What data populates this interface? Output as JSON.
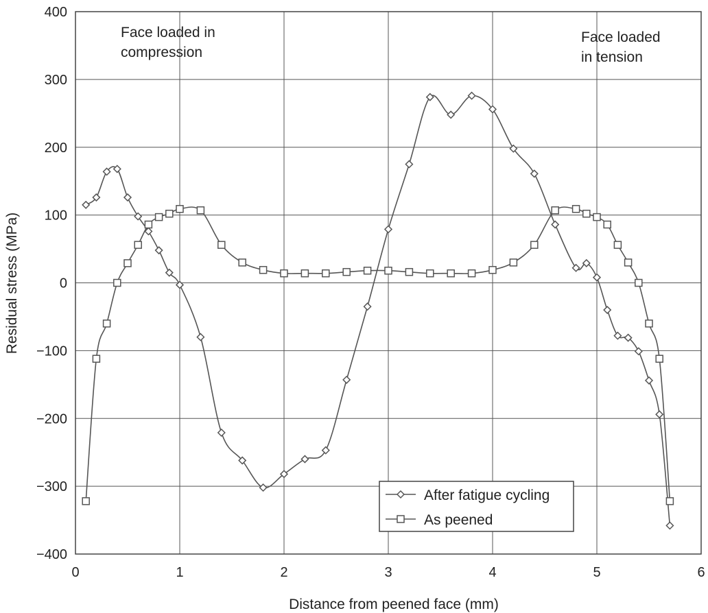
{
  "chart_data": {
    "type": "line",
    "xlabel": "Distance from peened face (mm)",
    "ylabel": "Residual stress (MPa)",
    "xlim": [
      0,
      6
    ],
    "ylim": [
      -400,
      400
    ],
    "x_ticks": [
      0,
      1,
      2,
      3,
      4,
      5,
      6
    ],
    "y_ticks": [
      -400,
      -300,
      -200,
      -100,
      0,
      100,
      200,
      300,
      400
    ],
    "x_tick_labels": [
      "0",
      "1",
      "2",
      "3",
      "4",
      "5",
      "6"
    ],
    "y_tick_labels": [
      "−400",
      "−300",
      "−200",
      "−100",
      "0",
      "100",
      "200",
      "300",
      "400"
    ],
    "grid": true,
    "legend_position": "bottom-center-right",
    "annotations": [
      {
        "lines": [
          "Face loaded in",
          "compression"
        ],
        "position": "top-left"
      },
      {
        "lines": [
          "Face loaded",
          "in tension"
        ],
        "position": "top-right"
      }
    ],
    "line_color": "#555555",
    "series": [
      {
        "name": "After fatigue cycling",
        "marker": "diamond",
        "x": [
          0.1,
          0.2,
          0.3,
          0.4,
          0.5,
          0.6,
          0.7,
          0.8,
          0.9,
          1.0,
          1.2,
          1.4,
          1.6,
          1.8,
          2.0,
          2.2,
          2.4,
          2.6,
          2.8,
          3.0,
          3.2,
          3.4,
          3.6,
          3.8,
          4.0,
          4.2,
          4.4,
          4.6,
          4.8,
          4.9,
          5.0,
          5.1,
          5.2,
          5.3,
          5.4,
          5.5,
          5.6,
          5.7
        ],
        "y": [
          115,
          126,
          164,
          168,
          126,
          98,
          76,
          48,
          15,
          -3,
          -80,
          -221,
          -262,
          -302,
          -282,
          -260,
          -247,
          -143,
          -35,
          79,
          175,
          274,
          248,
          276,
          256,
          198,
          161,
          86,
          22,
          29,
          8,
          -40,
          -78,
          -81,
          -101,
          -144,
          -194,
          -358
        ]
      },
      {
        "name": "As peened",
        "marker": "square",
        "x": [
          0.1,
          0.2,
          0.3,
          0.4,
          0.5,
          0.6,
          0.7,
          0.8,
          0.9,
          1.0,
          1.2,
          1.4,
          1.6,
          1.8,
          2.0,
          2.2,
          2.4,
          2.6,
          2.8,
          3.0,
          3.2,
          3.4,
          3.6,
          3.8,
          4.0,
          4.2,
          4.4,
          4.6,
          4.8,
          4.9,
          5.0,
          5.1,
          5.2,
          5.3,
          5.4,
          5.5,
          5.6,
          5.7
        ],
        "y": [
          -322,
          -112,
          -60,
          0,
          29,
          56,
          86,
          97,
          102,
          109,
          107,
          56,
          30,
          19,
          14,
          14,
          14,
          16,
          18,
          18,
          16,
          14,
          14,
          14,
          19,
          30,
          56,
          107,
          109,
          102,
          97,
          86,
          56,
          30,
          0,
          -60,
          -112,
          -322
        ]
      }
    ]
  }
}
